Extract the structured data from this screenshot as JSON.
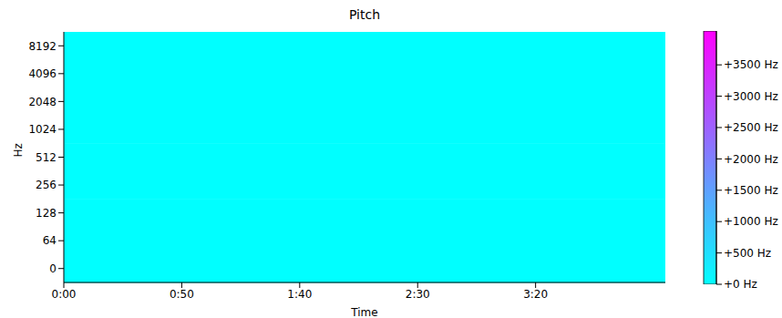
{
  "chart_data": {
    "type": "heatmap",
    "title": "Pitch",
    "x_label": "Time",
    "y_label": "Hz",
    "xlim": [
      0,
      255
    ],
    "xticks": [
      {
        "value": 0,
        "label": "0:00"
      },
      {
        "value": 50,
        "label": "0:50"
      },
      {
        "value": 100,
        "label": "1:40"
      },
      {
        "value": 150,
        "label": "2:30"
      },
      {
        "value": 200,
        "label": "3:20"
      }
    ],
    "rows": [
      0,
      64,
      128,
      256,
      512,
      1024,
      2048,
      4096,
      8192
    ],
    "time_bins": [
      0,
      255
    ],
    "cells": [
      [
        0
      ],
      [
        0
      ],
      [
        0
      ],
      [
        0
      ],
      [
        0
      ],
      [
        0
      ],
      [
        0
      ],
      [
        0
      ],
      [
        0
      ]
    ],
    "colors": [
      "#00ffff",
      "#ff00ff"
    ],
    "colorbar_range": [
      0,
      4040
    ],
    "colorbar_ticks": [
      {
        "value": 0,
        "label": "+0 Hz"
      },
      {
        "value": 500,
        "label": "+500 Hz"
      },
      {
        "value": 1000,
        "label": "+1000 Hz"
      },
      {
        "value": 1500,
        "label": "+1500 Hz"
      },
      {
        "value": 2000,
        "label": "+2000 Hz"
      },
      {
        "value": 2500,
        "label": "+2500 Hz"
      },
      {
        "value": 3000,
        "label": "+3000 Hz"
      },
      {
        "value": 3500,
        "label": "+3500 Hz"
      }
    ]
  }
}
